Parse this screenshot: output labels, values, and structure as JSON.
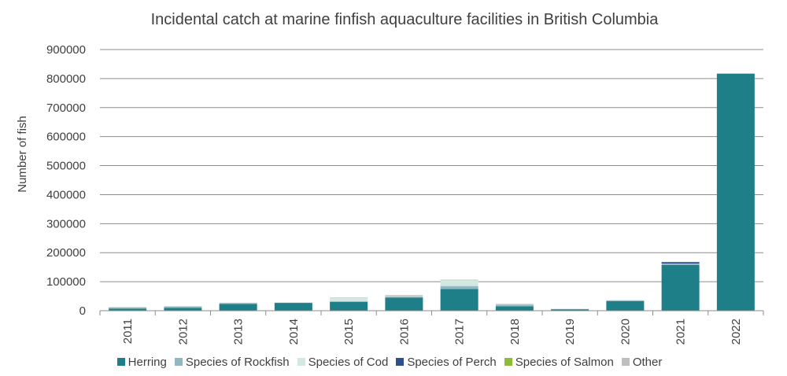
{
  "chart_data": {
    "type": "bar",
    "stacked": true,
    "title": "Incidental catch at marine finfish aquaculture facilities in British Columbia",
    "xlabel": "",
    "ylabel": "Number of fish",
    "ylim": [
      0,
      900000
    ],
    "yticks": [
      "0",
      "100000",
      "200000",
      "300000",
      "400000",
      "500000",
      "600000",
      "700000",
      "800000",
      "900000"
    ],
    "grid": true,
    "legend_position": "bottom",
    "categories": [
      "2011",
      "2012",
      "2013",
      "2014",
      "2015",
      "2016",
      "2017",
      "2018",
      "2019",
      "2020",
      "2021",
      "2022"
    ],
    "series": [
      {
        "name": "Herring",
        "color": "#1e7f88",
        "values": [
          7000,
          10000,
          23000,
          27000,
          30000,
          45000,
          75000,
          15000,
          5000,
          33000,
          158000,
          817000
        ]
      },
      {
        "name": "Species of Rockfish",
        "color": "#8fb8c0",
        "values": [
          4000,
          4000,
          3000,
          1000,
          3000,
          4000,
          10000,
          6000,
          1000,
          3000,
          3000,
          0
        ]
      },
      {
        "name": "Species of Cod",
        "color": "#d3e7e3",
        "values": [
          1000,
          1000,
          1000,
          0,
          12000,
          2000,
          20000,
          2000,
          0,
          0,
          1000,
          0
        ]
      },
      {
        "name": "Species of Perch",
        "color": "#2d4f8e",
        "values": [
          0,
          0,
          0,
          0,
          0,
          0,
          0,
          0,
          0,
          0,
          6000,
          0
        ]
      },
      {
        "name": "Species of Salmon",
        "color": "#8dbb3c",
        "values": [
          0,
          0,
          0,
          0,
          0,
          0,
          0,
          0,
          0,
          0,
          0,
          0
        ]
      },
      {
        "name": "Other",
        "color": "#bfbfbf",
        "values": [
          500,
          500,
          500,
          0,
          500,
          3000,
          2000,
          1000,
          0,
          0,
          500,
          0
        ]
      }
    ]
  }
}
